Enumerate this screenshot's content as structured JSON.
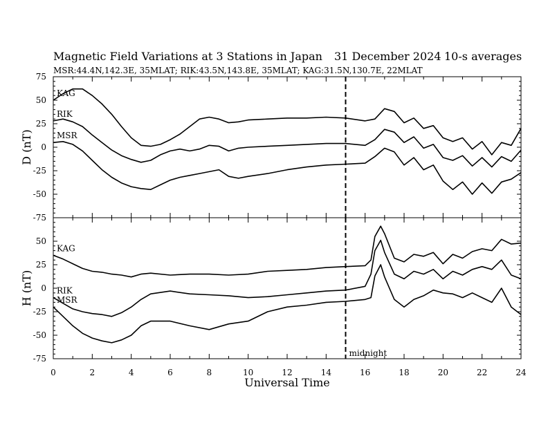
{
  "title": {
    "main": "Magnetic Field Variations at 3 Stations in Japan",
    "date": "31 December 2024",
    "averaging": "10-s averages",
    "stations": "MSR:44.4N,142.3E, 35MLAT;  RIK:43.5N,143.8E, 35MLAT;  KAG:31.5N,130.7E, 22MLAT"
  },
  "chart_data": [
    {
      "type": "line",
      "panel": "D",
      "ylabel": "D (nT)",
      "xlim": [
        0,
        24
      ],
      "ylim": [
        -75,
        75
      ],
      "yticks": [
        75,
        50,
        25,
        0,
        -25,
        -50,
        -75
      ],
      "midline": {
        "x": 15,
        "style": "dashed"
      },
      "series": [
        {
          "name": "KAG",
          "x": [
            0,
            0.5,
            1,
            1.5,
            2,
            2.5,
            3,
            3.5,
            4,
            4.5,
            5,
            5.5,
            6,
            6.5,
            7,
            7.5,
            8,
            8.5,
            9,
            9.5,
            10,
            11,
            12,
            13,
            14,
            15,
            16,
            16.5,
            17,
            17.5,
            18,
            18.5,
            19,
            19.5,
            20,
            20.5,
            21,
            21.5,
            22,
            22.5,
            23,
            23.5,
            24
          ],
          "y": [
            50,
            57,
            62,
            62,
            55,
            46,
            35,
            22,
            10,
            2,
            1,
            3,
            8,
            14,
            22,
            30,
            32,
            30,
            26,
            27,
            29,
            30,
            31,
            31,
            32,
            31,
            28,
            30,
            41,
            38,
            26,
            31,
            20,
            23,
            10,
            6,
            10,
            -2,
            6,
            -8,
            5,
            2,
            20
          ]
        },
        {
          "name": "RIK",
          "x": [
            0,
            0.5,
            1,
            1.5,
            2,
            2.5,
            3,
            3.5,
            4,
            4.5,
            5,
            5.5,
            6,
            6.5,
            7,
            7.5,
            8,
            8.5,
            9,
            9.5,
            10,
            11,
            12,
            13,
            14,
            15,
            16,
            16.5,
            17,
            17.5,
            18,
            18.5,
            19,
            19.5,
            20,
            20.5,
            21,
            21.5,
            22,
            22.5,
            23,
            23.5,
            24
          ],
          "y": [
            28,
            30,
            27,
            22,
            13,
            5,
            -3,
            -9,
            -13,
            -16,
            -14,
            -8,
            -4,
            -2,
            -4,
            -2,
            2,
            1,
            -4,
            -1,
            0,
            1,
            2,
            3,
            4,
            4,
            2,
            8,
            19,
            16,
            5,
            11,
            -1,
            3,
            -11,
            -14,
            -9,
            -20,
            -11,
            -21,
            -10,
            -15,
            -3
          ]
        },
        {
          "name": "MSR",
          "x": [
            0,
            0.5,
            1,
            1.5,
            2,
            2.5,
            3,
            3.5,
            4,
            4.5,
            5,
            5.5,
            6,
            6.5,
            7,
            7.5,
            8,
            8.5,
            9,
            9.5,
            10,
            11,
            12,
            13,
            14,
            15,
            16,
            16.5,
            17,
            17.5,
            18,
            18.5,
            19,
            19.5,
            20,
            20.5,
            21,
            21.5,
            22,
            22.5,
            23,
            23.5,
            24
          ],
          "y": [
            5,
            6,
            3,
            -4,
            -14,
            -24,
            -32,
            -38,
            -42,
            -44,
            -45,
            -40,
            -35,
            -32,
            -30,
            -28,
            -26,
            -24,
            -31,
            -33,
            -31,
            -28,
            -24,
            -21,
            -19,
            -18,
            -17,
            -10,
            -1,
            -5,
            -19,
            -11,
            -24,
            -19,
            -36,
            -45,
            -37,
            -50,
            -38,
            -49,
            -37,
            -34,
            -27
          ]
        }
      ]
    },
    {
      "type": "line",
      "panel": "H",
      "ylabel": "H (nT)",
      "xlabel": "Universal Time",
      "xlim": [
        0,
        24
      ],
      "ylim": [
        -75,
        75
      ],
      "xticks": [
        0,
        2,
        4,
        6,
        8,
        10,
        12,
        14,
        16,
        18,
        20,
        22,
        24
      ],
      "yticks": [
        50,
        25,
        0,
        -25,
        -50,
        -75
      ],
      "midline": {
        "x": 15,
        "style": "dashed",
        "label": "midnight"
      },
      "series": [
        {
          "name": "KAG",
          "x": [
            0,
            0.5,
            1,
            1.5,
            2,
            2.5,
            3,
            3.5,
            4,
            4.5,
            5,
            6,
            7,
            8,
            9,
            10,
            11,
            12,
            13,
            14,
            15,
            16,
            16.3,
            16.5,
            16.8,
            17,
            17.5,
            18,
            18.5,
            19,
            19.5,
            20,
            20.5,
            21,
            21.5,
            22,
            22.5,
            23,
            23.5,
            24
          ],
          "y": [
            35,
            31,
            26,
            21,
            18,
            17,
            15,
            14,
            12,
            15,
            16,
            14,
            15,
            15,
            14,
            15,
            18,
            19,
            20,
            22,
            23,
            24,
            30,
            55,
            66,
            58,
            32,
            28,
            36,
            34,
            38,
            26,
            36,
            32,
            39,
            42,
            40,
            52,
            47,
            48
          ]
        },
        {
          "name": "RIK",
          "x": [
            0,
            0.5,
            1,
            1.5,
            2,
            2.5,
            3,
            3.5,
            4,
            4.5,
            5,
            6,
            7,
            8,
            9,
            10,
            11,
            12,
            13,
            14,
            15,
            16,
            16.3,
            16.5,
            16.8,
            17,
            17.5,
            18,
            18.5,
            19,
            19.5,
            20,
            20.5,
            21,
            21.5,
            22,
            22.5,
            23,
            23.5,
            24
          ],
          "y": [
            -10,
            -16,
            -22,
            -25,
            -27,
            -28,
            -30,
            -26,
            -20,
            -12,
            -6,
            -3,
            -6,
            -7,
            -8,
            -10,
            -9,
            -7,
            -5,
            -3,
            -2,
            2,
            15,
            40,
            51,
            38,
            15,
            10,
            18,
            15,
            20,
            10,
            18,
            14,
            20,
            23,
            20,
            30,
            14,
            10
          ]
        },
        {
          "name": "MSR",
          "x": [
            0,
            0.5,
            1,
            1.5,
            2,
            2.5,
            3,
            3.5,
            4,
            4.5,
            5,
            6,
            7,
            8,
            9,
            10,
            11,
            12,
            13,
            14,
            15,
            16,
            16.3,
            16.5,
            16.8,
            17,
            17.5,
            18,
            18.5,
            19,
            19.5,
            20,
            20.5,
            21,
            21.5,
            22,
            22.5,
            23,
            23.5,
            24
          ],
          "y": [
            -20,
            -30,
            -40,
            -48,
            -53,
            -56,
            -58,
            -55,
            -50,
            -40,
            -35,
            -35,
            -40,
            -44,
            -38,
            -35,
            -25,
            -20,
            -18,
            -15,
            -14,
            -12,
            -10,
            13,
            25,
            12,
            -12,
            -20,
            -12,
            -8,
            -2,
            -5,
            -6,
            -10,
            -5,
            -10,
            -15,
            0,
            -20,
            -28
          ]
        }
      ]
    }
  ]
}
